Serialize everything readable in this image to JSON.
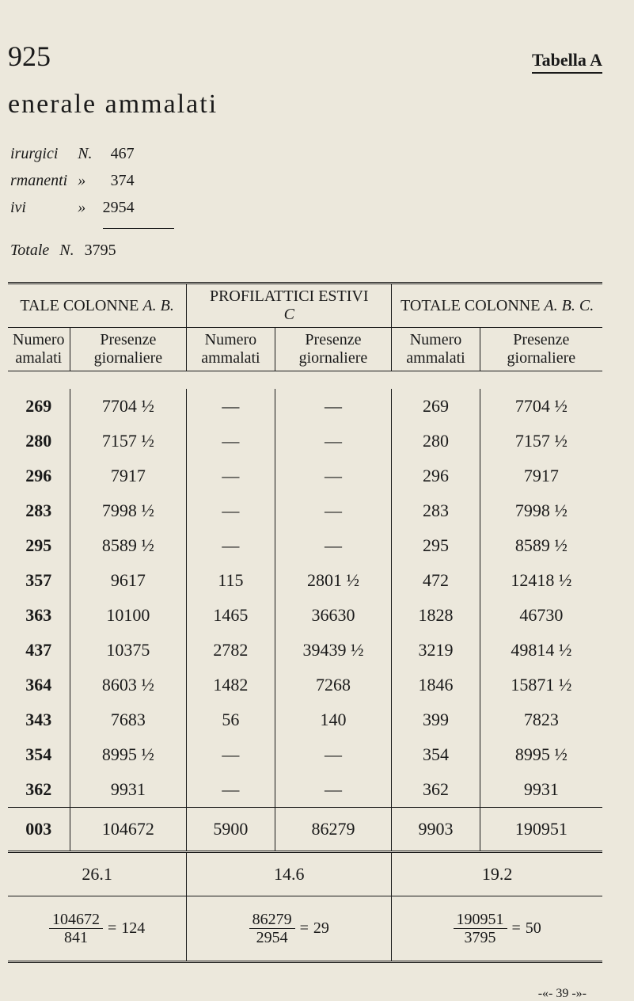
{
  "page_number": "925",
  "table_label": "Tabella  A",
  "title": "enerale  ammalati",
  "summary": [
    {
      "label": "irurgici",
      "sym": "N.",
      "val": "467"
    },
    {
      "label": "rmanenti",
      "sym": "»",
      "val": "374"
    },
    {
      "label": "ivi",
      "sym": "»",
      "val": "2954"
    }
  ],
  "summary_total": {
    "label": "Totale",
    "sym": "N.",
    "val": "3795"
  },
  "group_headers": {
    "ab": "TALE COLONNE",
    "ab_ital": "A. B.",
    "c_top": "PROFILATTICI  ESTIVI",
    "c_bottom": "C",
    "abc": "TOTALE COLONNE",
    "abc_ital": "A. B. C."
  },
  "sub_headers": {
    "num": "Numero",
    "amm": "ammalati",
    "pres": "Presenze",
    "gior": "giornaliere",
    "num_short": "Numero",
    "amm_short": "amalati"
  },
  "rows": [
    {
      "a_n": "269",
      "a_p": "7704 ½",
      "c_n": "—",
      "c_p": "—",
      "t_n": "269",
      "t_p": "7704 ½"
    },
    {
      "a_n": "280",
      "a_p": "7157 ½",
      "c_n": "—",
      "c_p": "—",
      "t_n": "280",
      "t_p": "7157 ½"
    },
    {
      "a_n": "296",
      "a_p": "7917",
      "c_n": "—",
      "c_p": "—",
      "t_n": "296",
      "t_p": "7917"
    },
    {
      "a_n": "283",
      "a_p": "7998 ½",
      "c_n": "—",
      "c_p": "—",
      "t_n": "283",
      "t_p": "7998 ½"
    },
    {
      "a_n": "295",
      "a_p": "8589 ½",
      "c_n": "—",
      "c_p": "—",
      "t_n": "295",
      "t_p": "8589 ½"
    },
    {
      "a_n": "357",
      "a_p": "9617",
      "c_n": "115",
      "c_p": "2801 ½",
      "t_n": "472",
      "t_p": "12418 ½"
    },
    {
      "a_n": "363",
      "a_p": "10100",
      "c_n": "1465",
      "c_p": "36630",
      "t_n": "1828",
      "t_p": "46730"
    },
    {
      "a_n": "437",
      "a_p": "10375",
      "c_n": "2782",
      "c_p": "39439 ½",
      "t_n": "3219",
      "t_p": "49814 ½"
    },
    {
      "a_n": "364",
      "a_p": "8603 ½",
      "c_n": "1482",
      "c_p": "7268",
      "t_n": "1846",
      "t_p": "15871 ½"
    },
    {
      "a_n": "343",
      "a_p": "7683",
      "c_n": "56",
      "c_p": "140",
      "t_n": "399",
      "t_p": "7823"
    },
    {
      "a_n": "354",
      "a_p": "8995 ½",
      "c_n": "—",
      "c_p": "—",
      "t_n": "354",
      "t_p": "8995 ½"
    },
    {
      "a_n": "362",
      "a_p": "9931",
      "c_n": "—",
      "c_p": "—",
      "t_n": "362",
      "t_p": "9931"
    }
  ],
  "totals": {
    "a_n": "003",
    "a_p": "104672",
    "c_n": "5900",
    "c_p": "86279",
    "t_n": "9903",
    "t_p": "190951"
  },
  "averages": {
    "ab": "26.1",
    "c": "14.6",
    "abc": "19.2"
  },
  "fractions": {
    "ab": {
      "num": "104672",
      "den": "841",
      "res": "124"
    },
    "c": {
      "num": "86279",
      "den": "2954",
      "res": "29"
    },
    "abc": {
      "num": "190951",
      "den": "3795",
      "res": "50"
    }
  },
  "footer": "-«- 39 -»-"
}
